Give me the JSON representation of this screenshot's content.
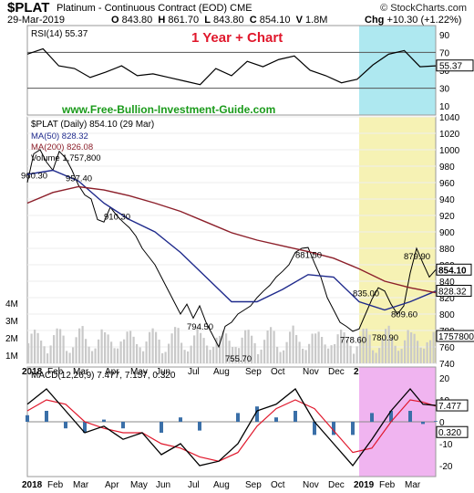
{
  "header": {
    "symbol": "$PLAT",
    "name": "Platinum - Continuous Contract (EOD)",
    "exchange": "CME",
    "site": "© StockCharts.com",
    "date": "29-Mar-2019",
    "open_label": "O",
    "open": "843.80",
    "high_label": "H",
    "high": "861.70",
    "low_label": "L",
    "low": "843.80",
    "close_label": "C",
    "close": "854.10",
    "volume_label": "V",
    "volume": "1.8M",
    "chg_label": "Chg",
    "chg": "+10.30 (+1.22%)"
  },
  "overlay_title": "1 Year + Chart",
  "watermark": "www.Free-Bullion-Investment-Guide.com",
  "colors": {
    "overlay_title": "#e0182c",
    "watermark": "#1a9a1a",
    "rsi_band": "#aee8f0",
    "price_band": "#f6f2b4",
    "macd_band": "#f0b4f0",
    "ma50": "#1f2a8c",
    "ma200": "#8c1f2a",
    "volume": "#c9c9c9",
    "macd_line": "#000000",
    "signal_line": "#e0182c",
    "histogram": "#3a6fa8",
    "rsi_fill": "#7ab06c"
  },
  "chart_data": [
    {
      "type": "line",
      "panel": "RSI",
      "title": "RSI(14) 55.37",
      "ylim": [
        0,
        100
      ],
      "ticks": [
        90,
        70,
        50,
        30,
        10
      ],
      "reference_lines": [
        70,
        30
      ],
      "last_value": 55.37,
      "last_value_label": "55.37",
      "x": [
        0,
        2,
        4,
        6,
        8,
        10,
        12,
        14,
        16,
        18,
        20,
        22,
        24,
        26,
        28,
        30,
        32,
        34,
        36,
        38,
        40,
        42,
        44,
        46,
        48,
        50,
        52
      ],
      "values": [
        68,
        74,
        55,
        52,
        42,
        48,
        55,
        44,
        46,
        42,
        38,
        34,
        52,
        44,
        60,
        54,
        62,
        66,
        50,
        44,
        36,
        40,
        56,
        68,
        72,
        54,
        55
      ]
    },
    {
      "type": "line",
      "panel": "Price",
      "title": "$PLAT (Daily) 854.10 (29 Mar)",
      "ylim": [
        740,
        1040
      ],
      "ticks": [
        1040,
        1020,
        1000,
        980,
        960,
        940,
        920,
        900,
        880,
        860,
        840,
        820,
        800,
        780,
        760,
        740
      ],
      "x_tick_labels": [
        "2018",
        "Feb",
        "Mar",
        "Apr",
        "May",
        "Jun",
        "Jul",
        "Aug",
        "Sep",
        "Oct",
        "Nov",
        "Dec",
        "2019",
        "Feb",
        "Mar"
      ],
      "x_tick_weeks": [
        0,
        4,
        8,
        13,
        17,
        21,
        26,
        30,
        35,
        39,
        44,
        48,
        52,
        56,
        60
      ],
      "series": [
        {
          "name": "Price",
          "x": [
            0,
            1,
            2,
            3,
            4,
            5,
            6,
            7,
            8,
            9,
            10,
            11,
            12,
            13,
            14,
            15,
            16,
            17,
            18,
            19,
            20,
            21,
            22,
            23,
            24,
            25,
            26,
            27,
            28,
            29,
            30,
            31,
            32,
            33,
            34,
            35,
            36,
            37,
            38,
            39,
            40,
            41,
            42,
            43,
            44,
            45,
            46,
            47,
            48,
            49,
            50,
            51,
            52,
            53,
            54,
            55,
            56,
            57,
            58,
            59,
            60,
            61,
            62,
            63,
            64
          ],
          "values": [
            960,
            995,
            1000,
            985,
            975,
            998,
            990,
            975,
            957,
            945,
            940,
            915,
            912,
            930,
            920,
            912,
            905,
            895,
            880,
            870,
            860,
            845,
            830,
            815,
            800,
            812,
            795,
            810,
            790,
            775,
            760,
            785,
            790,
            800,
            805,
            810,
            820,
            828,
            835,
            845,
            852,
            860,
            875,
            880,
            881,
            862,
            845,
            820,
            805,
            790,
            785,
            779,
            782,
            800,
            818,
            832,
            828,
            812,
            800,
            810,
            850,
            880,
            862,
            845,
            854
          ]
        },
        {
          "name": "MA(50) 828.32",
          "x": [
            0,
            4,
            8,
            12,
            16,
            20,
            24,
            28,
            32,
            36,
            40,
            44,
            48,
            52,
            56,
            60,
            64
          ],
          "values": [
            970,
            975,
            962,
            935,
            915,
            900,
            875,
            845,
            815,
            815,
            830,
            848,
            845,
            815,
            805,
            815,
            828
          ]
        },
        {
          "name": "MA(200) 826.08",
          "x": [
            0,
            4,
            8,
            12,
            16,
            20,
            24,
            28,
            32,
            36,
            40,
            44,
            48,
            52,
            56,
            60,
            64
          ],
          "values": [
            935,
            948,
            955,
            951,
            944,
            935,
            925,
            912,
            899,
            890,
            883,
            876,
            868,
            855,
            840,
            832,
            826
          ]
        }
      ],
      "volume": {
        "name": "Volume 1,757,800",
        "left_ticks": [
          "4M",
          "3M",
          "2M",
          "1M"
        ],
        "last_value_label": "1757800"
      },
      "annotations": [
        {
          "label": "960.30",
          "x": 1,
          "y": 960.3
        },
        {
          "label": "957.40",
          "x": 8,
          "y": 957.4
        },
        {
          "label": "910.30",
          "x": 14,
          "y": 910.3
        },
        {
          "label": "794.50",
          "x": 27,
          "y": 794.5
        },
        {
          "label": "755.70",
          "x": 33,
          "y": 755.7
        },
        {
          "label": "881.50",
          "x": 44,
          "y": 881.5
        },
        {
          "label": "778.60",
          "x": 51,
          "y": 778.6
        },
        {
          "label": "835.00",
          "x": 53,
          "y": 835.0
        },
        {
          "label": "780.90",
          "x": 56,
          "y": 780.9
        },
        {
          "label": "879.90",
          "x": 61,
          "y": 879.9
        },
        {
          "label": "809.60",
          "x": 59,
          "y": 809.6
        }
      ],
      "last_value_labels": [
        "854.10",
        "828.32"
      ]
    },
    {
      "type": "line",
      "panel": "MACD",
      "title": "MACD(12,26,9) 7.477, 7.157, 0.320",
      "ylim": [
        -25,
        25
      ],
      "ticks": [
        20,
        10,
        0,
        -10,
        -20
      ],
      "last_value_labels": [
        "7.477",
        "0.320"
      ],
      "series": [
        {
          "name": "MACD",
          "x": [
            0,
            3,
            6,
            9,
            12,
            15,
            18,
            21,
            24,
            27,
            30,
            33,
            36,
            39,
            42,
            45,
            48,
            51,
            54,
            57,
            60,
            62,
            64
          ],
          "values": [
            8,
            15,
            5,
            -5,
            -2,
            -8,
            -5,
            -15,
            -10,
            -20,
            -18,
            -10,
            5,
            8,
            15,
            0,
            -10,
            -20,
            -8,
            5,
            15,
            8,
            7.477
          ]
        },
        {
          "name": "Signal",
          "x": [
            0,
            3,
            6,
            9,
            12,
            15,
            18,
            21,
            24,
            27,
            30,
            33,
            36,
            39,
            42,
            45,
            48,
            51,
            54,
            57,
            60,
            62,
            64
          ],
          "values": [
            5,
            10,
            8,
            0,
            -3,
            -5,
            -5,
            -10,
            -12,
            -16,
            -18,
            -14,
            -2,
            6,
            10,
            6,
            -4,
            -14,
            -12,
            0,
            10,
            9,
            7.157
          ]
        }
      ]
    }
  ],
  "x_axis_labels": [
    "2018",
    "Feb",
    "Mar",
    "Apr",
    "May",
    "Jun",
    "Jul",
    "Aug",
    "Sep",
    "Oct",
    "Nov",
    "Dec",
    "2019",
    "Feb",
    "Mar"
  ]
}
